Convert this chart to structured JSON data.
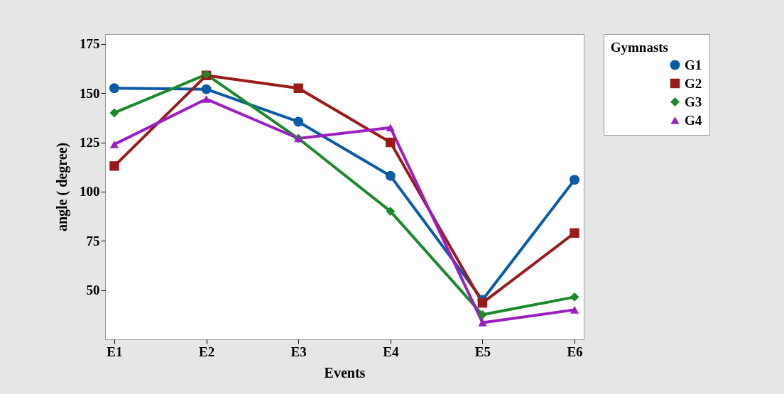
{
  "chart_data": {
    "type": "line",
    "xlabel": "Events",
    "ylabel": "angle ( degree)",
    "legend_title": "Gymnasts",
    "categories": [
      "E1",
      "E2",
      "E3",
      "E4",
      "E5",
      "E6"
    ],
    "series": [
      {
        "name": "G1",
        "color": "#0a5ca8",
        "marker": "circle",
        "values": [
          152.5,
          152,
          135.5,
          108,
          45,
          106
        ]
      },
      {
        "name": "G2",
        "color": "#9b1b1b",
        "marker": "square",
        "values": [
          113,
          159,
          152.5,
          125,
          43.5,
          79
        ]
      },
      {
        "name": "G3",
        "color": "#1a8a2a",
        "marker": "diamond",
        "values": [
          140,
          159.5,
          127,
          90,
          37.5,
          46.5
        ]
      },
      {
        "name": "G4",
        "color": "#9b1fc0",
        "marker": "triangle",
        "values": [
          124,
          147,
          127,
          132.5,
          33.5,
          40
        ]
      }
    ],
    "ylim": [
      25,
      180
    ],
    "yticks": [
      50,
      75,
      100,
      125,
      150,
      175
    ],
    "grid": false,
    "legend": "right",
    "line_style": "solid"
  }
}
